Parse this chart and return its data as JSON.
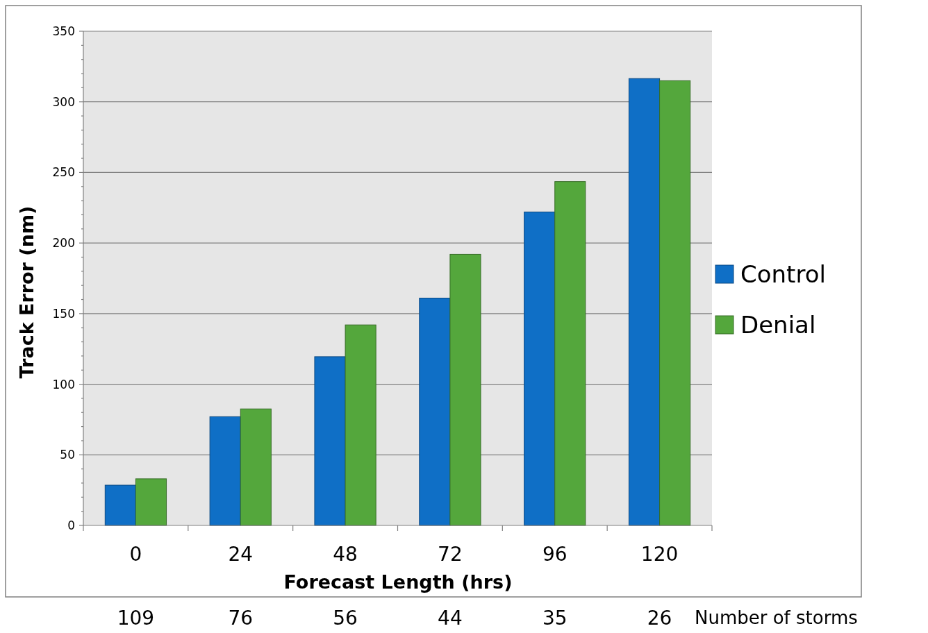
{
  "chart_data": {
    "type": "bar",
    "xlabel": "Forecast Length (hrs)",
    "ylabel": "Track Error (nm)",
    "categories": [
      "0",
      "24",
      "48",
      "72",
      "96",
      "120"
    ],
    "series": [
      {
        "name": "Control",
        "color": "#0f6fc6",
        "values": [
          28.5,
          77,
          119.5,
          161,
          222,
          316.5
        ]
      },
      {
        "name": "Denial",
        "color": "#54a73c",
        "values": [
          33,
          82.5,
          142,
          192,
          243.5,
          315
        ]
      }
    ],
    "ylim": [
      0,
      350
    ],
    "yticks": [
      0,
      {
        "value": 10,
        "label": null
      },
      {
        "value": 20,
        "label": null
      },
      {
        "value": 30,
        "label": null
      },
      {
        "value": 40,
        "label": null
      },
      50,
      {
        "value": 60,
        "label": null
      },
      {
        "value": 70,
        "label": null
      },
      {
        "value": 80,
        "label": null
      },
      {
        "value": 90,
        "label": null
      },
      100,
      {
        "value": 110,
        "label": null
      },
      {
        "value": 120,
        "label": null
      },
      {
        "value": 130,
        "label": null
      },
      {
        "value": 140,
        "label": null
      },
      150,
      {
        "value": 160,
        "label": null
      },
      {
        "value": 170,
        "label": null
      },
      {
        "value": 180,
        "label": null
      },
      {
        "value": 190,
        "label": null
      },
      200,
      {
        "value": 210,
        "label": null
      },
      {
        "value": 220,
        "label": null
      },
      {
        "value": 230,
        "label": null
      },
      {
        "value": 240,
        "label": null
      },
      250,
      {
        "value": 260,
        "label": null
      },
      {
        "value": 270,
        "label": null
      },
      {
        "value": 280,
        "label": null
      },
      {
        "value": 290,
        "label": null
      },
      300,
      {
        "value": 310,
        "label": null
      },
      {
        "value": 320,
        "label": null
      },
      {
        "value": 330,
        "label": null
      },
      {
        "value": 340,
        "label": null
      },
      350
    ],
    "grid": "y",
    "legend": "right",
    "annotations": [
      "109",
      "76",
      "56",
      "44",
      "35",
      "26",
      "Number of storms"
    ]
  }
}
